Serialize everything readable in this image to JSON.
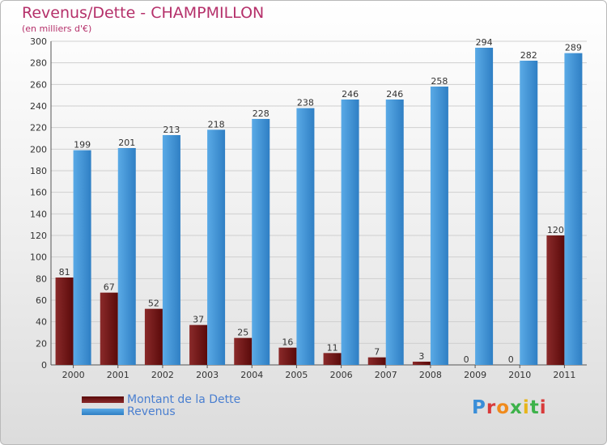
{
  "title": "Revenus/Dette - CHAMPMILLON",
  "subtitle": "(en milliers d'€)",
  "logo_text": "Proxiti",
  "colors": {
    "title": "#b5306a",
    "dette_dark": "#5a0a0a",
    "dette_light": "#8a2a2a",
    "revenus_light": "#5aaae6",
    "revenus_dark": "#2f7fc4",
    "legend_text": "#4a7fd0",
    "grid": "#cfcfcf"
  },
  "chart_data": {
    "type": "bar",
    "title": "Revenus/Dette - CHAMPMILLON",
    "subtitle": "(en milliers d'€)",
    "xlabel": "",
    "ylabel": "",
    "ylim": [
      0,
      300
    ],
    "yticks": [
      0,
      20,
      40,
      60,
      80,
      100,
      120,
      140,
      160,
      180,
      200,
      220,
      240,
      260,
      280,
      300
    ],
    "grid": true,
    "legend_position": "bottom-left",
    "categories": [
      "2000",
      "2001",
      "2002",
      "2003",
      "2004",
      "2005",
      "2006",
      "2007",
      "2008",
      "2009",
      "2010",
      "2011"
    ],
    "series": [
      {
        "name": "Montant de la Dette",
        "values": [
          81,
          67,
          52,
          37,
          25,
          16,
          11,
          7,
          3,
          0,
          0,
          120
        ]
      },
      {
        "name": "Revenus",
        "values": [
          199,
          201,
          213,
          218,
          228,
          238,
          246,
          246,
          258,
          294,
          282,
          289
        ]
      }
    ]
  }
}
